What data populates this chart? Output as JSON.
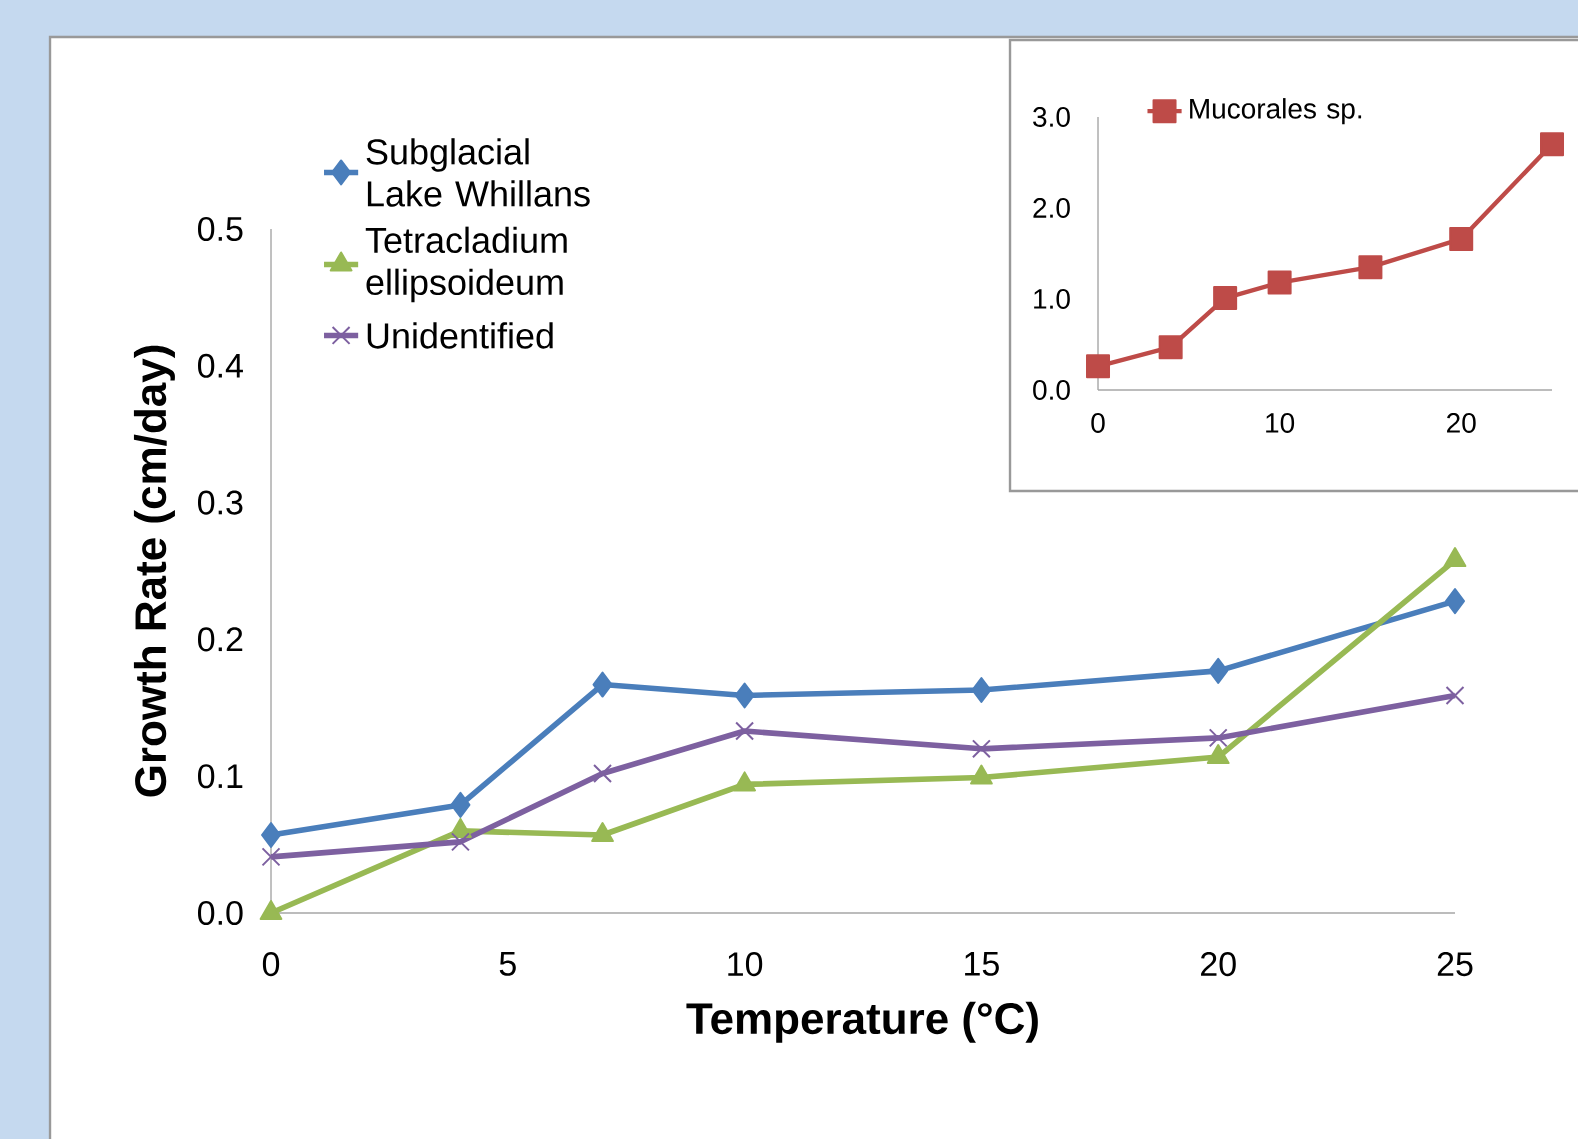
{
  "chart_data": [
    {
      "type": "line",
      "xlabel": "Temperature (°C)",
      "ylabel": "Growth Rate (cm/day)",
      "x": [
        0,
        4,
        7,
        10,
        15,
        20,
        25
      ],
      "xlim": [
        0,
        25
      ],
      "ylim": [
        0,
        0.5
      ],
      "xticks": [
        0,
        5,
        10,
        15,
        20,
        25
      ],
      "yticks": [
        {
          "value": 0,
          "label": "0.0"
        },
        {
          "value": 0.1,
          "label": "0.1"
        },
        {
          "value": 0.2,
          "label": "0.2"
        },
        {
          "value": 0.3,
          "label": "0.3"
        },
        {
          "value": 0.4,
          "label": "0.4"
        },
        {
          "value": 0.5,
          "label": "0.5"
        }
      ],
      "legend": "top left",
      "series": [
        {
          "name": "Subglacial Lake Whillans",
          "color": "#4a7ebb",
          "marker": "diamond",
          "values": [
            0.057,
            0.079,
            0.167,
            0.159,
            0.163,
            0.177,
            0.228
          ]
        },
        {
          "name": "Tetracladium ellipsoideum",
          "color": "#98b954",
          "marker": "triangle",
          "values": [
            0.0,
            0.06,
            0.057,
            0.094,
            0.099,
            0.114,
            0.258
          ]
        },
        {
          "name": "Unidentified",
          "color": "#7d60a0",
          "marker": "cross",
          "values": [
            0.041,
            0.052,
            0.102,
            0.133,
            0.12,
            0.128,
            0.159
          ]
        }
      ]
    },
    {
      "type": "line",
      "x": [
        0,
        4,
        7,
        10,
        15,
        20,
        25
      ],
      "xlim": [
        0,
        25
      ],
      "ylim": [
        0,
        3
      ],
      "xticks": [
        0,
        10,
        20
      ],
      "yticks": [
        {
          "value": 0,
          "label": "0.0"
        },
        {
          "value": 1,
          "label": "1.0"
        },
        {
          "value": 2,
          "label": "2.0"
        },
        {
          "value": 3,
          "label": "3.0"
        }
      ],
      "legend": "top",
      "series": [
        {
          "name": "Mucorales sp.",
          "color": "#be4b48",
          "marker": "square",
          "values": [
            0.26,
            0.47,
            1.01,
            1.18,
            1.35,
            1.66,
            2.7
          ]
        }
      ]
    }
  ]
}
